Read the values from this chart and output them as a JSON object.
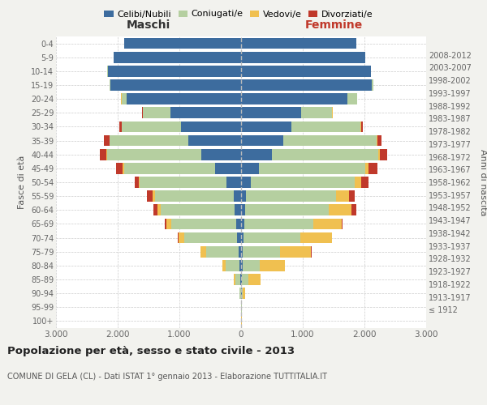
{
  "age_groups": [
    "100+",
    "95-99",
    "90-94",
    "85-89",
    "80-84",
    "75-79",
    "70-74",
    "65-69",
    "60-64",
    "55-59",
    "50-54",
    "45-49",
    "40-44",
    "35-39",
    "30-34",
    "25-29",
    "20-24",
    "15-19",
    "10-14",
    "5-9",
    "0-4"
  ],
  "birth_years": [
    "≤ 1912",
    "1913-1917",
    "1918-1922",
    "1923-1927",
    "1928-1932",
    "1933-1937",
    "1938-1942",
    "1943-1947",
    "1948-1952",
    "1953-1957",
    "1958-1962",
    "1963-1967",
    "1968-1972",
    "1973-1977",
    "1978-1982",
    "1983-1987",
    "1988-1992",
    "1993-1997",
    "1998-2002",
    "2003-2007",
    "2008-2012"
  ],
  "male_celibe": [
    2,
    2,
    5,
    10,
    25,
    40,
    65,
    80,
    100,
    120,
    240,
    420,
    650,
    850,
    980,
    1150,
    1850,
    2120,
    2160,
    2060,
    1900
  ],
  "male_coniugato": [
    2,
    3,
    15,
    80,
    220,
    530,
    850,
    1050,
    1200,
    1280,
    1400,
    1480,
    1520,
    1280,
    950,
    440,
    90,
    15,
    5,
    2,
    1
  ],
  "male_vedovo": [
    0,
    1,
    5,
    25,
    55,
    85,
    100,
    80,
    60,
    40,
    20,
    15,
    10,
    5,
    3,
    2,
    2,
    1,
    0,
    0,
    0
  ],
  "male_divorziato": [
    0,
    0,
    1,
    2,
    4,
    6,
    12,
    22,
    55,
    85,
    65,
    105,
    105,
    85,
    40,
    10,
    5,
    2,
    1,
    0,
    0
  ],
  "female_nubile": [
    2,
    3,
    8,
    12,
    22,
    28,
    40,
    50,
    65,
    85,
    160,
    295,
    500,
    680,
    820,
    970,
    1720,
    2120,
    2100,
    2010,
    1870
  ],
  "female_coniugata": [
    3,
    5,
    20,
    100,
    280,
    600,
    920,
    1120,
    1360,
    1460,
    1680,
    1720,
    1720,
    1520,
    1120,
    510,
    155,
    20,
    5,
    2,
    1
  ],
  "female_vedova": [
    2,
    8,
    40,
    200,
    410,
    510,
    510,
    460,
    360,
    210,
    105,
    55,
    28,
    16,
    8,
    5,
    3,
    1,
    0,
    0,
    0
  ],
  "female_divorziata": [
    0,
    0,
    1,
    2,
    4,
    5,
    9,
    16,
    85,
    85,
    125,
    135,
    115,
    65,
    28,
    8,
    3,
    1,
    0,
    0,
    0
  ],
  "colors": {
    "celibe_nubile": "#3d6c9e",
    "coniugato": "#b5cfa0",
    "vedovo": "#f0c050",
    "divorziato": "#c0392b"
  },
  "xlim": 3000,
  "title": "Popolazione per età, sesso e stato civile - 2013",
  "subtitle": "COMUNE DI GELA (CL) - Dati ISTAT 1° gennaio 2013 - Elaborazione TUTTITALIA.IT",
  "maschi_label": "Maschi",
  "femmine_label": "Femmine",
  "ylabel_left": "Fasce di età",
  "ylabel_right": "Anni di nascita",
  "legend_labels": [
    "Celibi/Nubili",
    "Coniugati/e",
    "Vedovi/e",
    "Divorziati/e"
  ],
  "bg_color": "#f2f2ee",
  "plot_bg": "#ffffff",
  "xtick_labels": [
    "3.000",
    "2.000",
    "1.000",
    "0",
    "1.000",
    "2.000",
    "3.000"
  ]
}
